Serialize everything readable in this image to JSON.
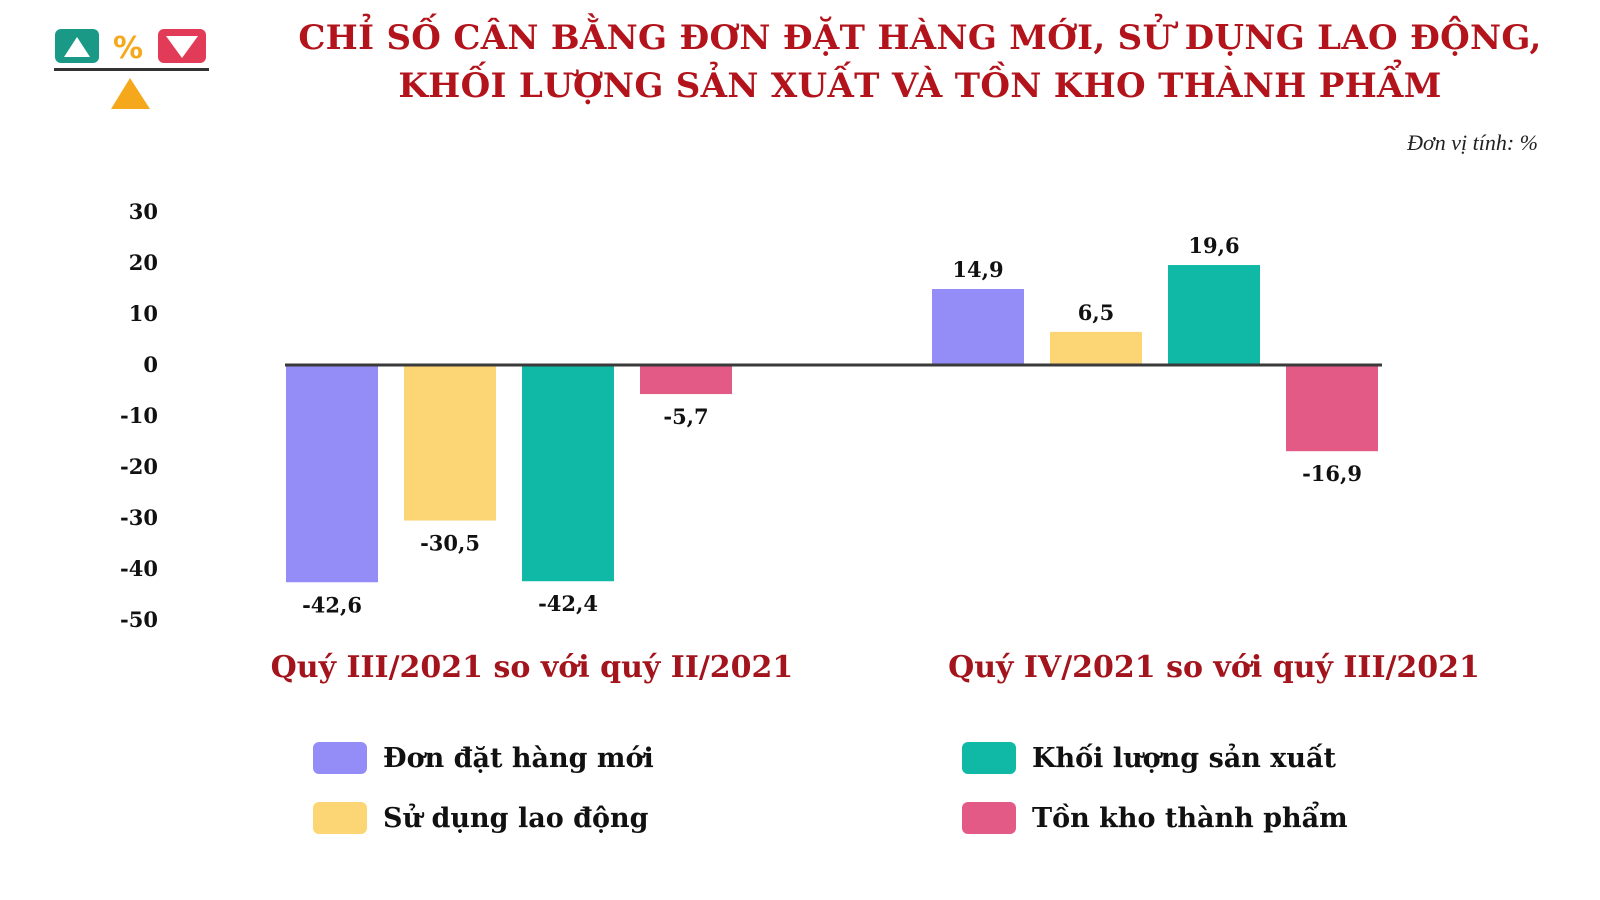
{
  "header": {
    "title_line1": "CHỈ SỐ CÂN BẰNG ĐƠN ĐẶT HÀNG MỚI, SỬ DỤNG LAO ĐỘNG,",
    "title_line2": "KHỐI LƯỢNG SẢN XUẤT VÀ TỒN KHO THÀNH PHẨM",
    "unit": "Đơn vị tính: %",
    "logo_percent": "%"
  },
  "colors": {
    "title": "#b3141c",
    "group_label": "#a3141c",
    "series": [
      "#958df7",
      "#fcd675",
      "#10b9a6",
      "#e45a87"
    ],
    "logo_green": "#1a9a86",
    "logo_orange": "#f5a81c",
    "logo_red": "#e23b58"
  },
  "chart_data": {
    "type": "bar",
    "categories": [
      "Quý III/2021 so với quý II/2021",
      "Quý IV/2021 so với quý III/2021"
    ],
    "series": [
      {
        "name": "Đơn đặt hàng mới",
        "values": [
          -42.6,
          14.9
        ],
        "labels": [
          "-42,6",
          "14,9"
        ]
      },
      {
        "name": "Sử dụng lao động",
        "values": [
          -30.5,
          6.5
        ],
        "labels": [
          "-30,5",
          "6,5"
        ]
      },
      {
        "name": "Khối lượng sản xuất",
        "values": [
          -42.4,
          19.6
        ],
        "labels": [
          "-42,4",
          "19,6"
        ]
      },
      {
        "name": "Tồn kho thành phẩm",
        "values": [
          -5.7,
          -16.9
        ],
        "labels": [
          "-5,7",
          "-16,9"
        ]
      }
    ],
    "yticks": [
      30,
      20,
      10,
      0,
      -10,
      -20,
      -30,
      -40,
      -50
    ],
    "ylim": [
      -50,
      30
    ],
    "legend_position": "bottom",
    "grid": false
  }
}
